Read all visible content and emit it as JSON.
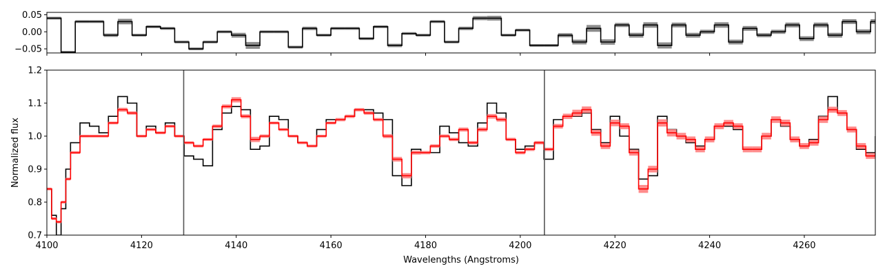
{
  "chart_data": [
    {
      "type": "line",
      "panel": "residuals",
      "xlim": [
        4100,
        4275
      ],
      "ylim": [
        -0.062,
        0.057
      ],
      "yticks": [
        -0.05,
        0.0,
        0.05
      ],
      "ytick_labels": [
        "−0.05",
        "0.00",
        "0.05"
      ],
      "series": [
        {
          "style": "steps",
          "color": "#000000",
          "error_color": "#808080",
          "x": [
            4100,
            4103,
            4106,
            4109,
            4112,
            4115,
            4118,
            4121,
            4124,
            4127,
            4130,
            4133,
            4136,
            4139,
            4142,
            4145,
            4148,
            4151,
            4154,
            4157,
            4160,
            4163,
            4166,
            4169,
            4172,
            4175,
            4178,
            4181,
            4184,
            4187,
            4190,
            4193,
            4196,
            4199,
            4202,
            4205,
            4208,
            4211,
            4214,
            4217,
            4220,
            4223,
            4226,
            4229,
            4232,
            4235,
            4238,
            4241,
            4244,
            4247,
            4250,
            4253,
            4256,
            4259,
            4262,
            4265,
            4268,
            4271,
            4274
          ],
          "y": [
            0.04,
            -0.06,
            0.03,
            0.03,
            -0.01,
            0.03,
            -0.01,
            0.015,
            0.01,
            -0.03,
            -0.05,
            -0.03,
            0.0,
            -0.01,
            -0.04,
            0.0,
            0.0,
            -0.045,
            0.01,
            -0.01,
            0.01,
            0.01,
            -0.02,
            0.015,
            -0.04,
            -0.005,
            -0.01,
            0.03,
            -0.03,
            0.01,
            0.04,
            0.04,
            -0.01,
            0.005,
            -0.04,
            -0.04,
            -0.01,
            -0.03,
            0.01,
            -0.03,
            0.02,
            -0.01,
            0.02,
            -0.04,
            0.02,
            -0.01,
            0.0,
            0.02,
            -0.03,
            0.01,
            -0.01,
            0.0,
            0.02,
            -0.02,
            0.02,
            -0.01,
            0.03,
            0.0,
            0.03
          ],
          "errors": [
            0.002,
            0.002,
            0.002,
            0.002,
            0.005,
            0.008,
            0.004,
            0.004,
            0.003,
            0.002,
            0.002,
            0.002,
            0.004,
            0.007,
            0.01,
            0.004,
            0.002,
            0.002,
            0.005,
            0.002,
            0.002,
            0.002,
            0.003,
            0.003,
            0.005,
            0.004,
            0.003,
            0.003,
            0.002,
            0.005,
            0.006,
            0.007,
            0.003,
            0.004,
            0.002,
            0.003,
            0.006,
            0.007,
            0.01,
            0.008,
            0.006,
            0.007,
            0.008,
            0.009,
            0.007,
            0.007,
            0.006,
            0.008,
            0.007,
            0.007,
            0.006,
            0.006,
            0.007,
            0.007,
            0.007,
            0.007,
            0.007,
            0.007,
            0.007
          ]
        }
      ]
    },
    {
      "type": "line",
      "panel": "spectrum",
      "xlabel": "Wavelengths (Angstroms)",
      "ylabel": "Normalized flux",
      "xlim": [
        4100,
        4275
      ],
      "ylim": [
        0.7,
        1.2
      ],
      "xticks": [
        4100,
        4120,
        4140,
        4160,
        4180,
        4200,
        4220,
        4240,
        4260
      ],
      "yticks": [
        0.7,
        0.8,
        0.9,
        1.0,
        1.1,
        1.2
      ],
      "ytick_labels": [
        "0.7",
        "0.8",
        "0.9",
        "1.0",
        "1.1",
        "1.2"
      ],
      "vlines": [
        4128.9,
        4205.1
      ],
      "series": [
        {
          "style": "steps",
          "color": "#000000",
          "x": [
            4100,
            4101,
            4102,
            4103,
            4104,
            4105,
            4107,
            4109,
            4111,
            4113,
            4115,
            4117,
            4119,
            4121,
            4123,
            4125,
            4127,
            4129,
            4131,
            4133,
            4135,
            4137,
            4139,
            4141,
            4143,
            4145,
            4147,
            4149,
            4151,
            4153,
            4155,
            4157,
            4159,
            4161,
            4163,
            4165,
            4167,
            4169,
            4171,
            4173,
            4175,
            4177,
            4179,
            4181,
            4183,
            4185,
            4187,
            4189,
            4191,
            4193,
            4195,
            4197,
            4199,
            4201,
            4203,
            4205,
            4207,
            4209,
            4211,
            4213,
            4215,
            4217,
            4219,
            4221,
            4223,
            4225,
            4227,
            4229,
            4231,
            4233,
            4235,
            4237,
            4239,
            4241,
            4243,
            4245,
            4247,
            4249,
            4251,
            4253,
            4255,
            4257,
            4259,
            4261,
            4263,
            4265,
            4267,
            4269,
            4271,
            4273,
            4275
          ],
          "y": [
            0.84,
            0.76,
            0.7,
            0.78,
            0.9,
            0.98,
            1.04,
            1.03,
            1.01,
            1.06,
            1.12,
            1.1,
            1.0,
            1.03,
            1.01,
            1.04,
            1.0,
            0.94,
            0.93,
            0.91,
            1.02,
            1.07,
            1.09,
            1.08,
            0.96,
            0.97,
            1.06,
            1.05,
            1.0,
            0.98,
            0.97,
            1.02,
            1.05,
            1.05,
            1.06,
            1.08,
            1.08,
            1.07,
            1.05,
            0.88,
            0.85,
            0.96,
            0.95,
            0.95,
            1.03,
            1.01,
            0.98,
            0.97,
            1.04,
            1.1,
            1.07,
            0.99,
            0.96,
            0.97,
            0.98,
            0.93,
            1.05,
            1.06,
            1.06,
            1.07,
            1.02,
            0.98,
            1.06,
            1.0,
            0.96,
            0.87,
            0.88,
            1.06,
            1.02,
            1.0,
            0.98,
            0.97,
            0.99,
            1.03,
            1.03,
            1.02,
            0.96,
            0.96,
            1.0,
            1.05,
            1.03,
            0.99,
            0.97,
            0.99,
            1.06,
            1.12,
            1.07,
            1.02,
            0.96,
            0.95,
            1.0
          ]
        },
        {
          "style": "steps",
          "color": "#ff0000",
          "error_color": "#ff7f7f",
          "x": [
            4100,
            4101,
            4102,
            4103,
            4104,
            4105,
            4107,
            4109,
            4111,
            4113,
            4115,
            4117,
            4119,
            4121,
            4123,
            4125,
            4127,
            4129,
            4131,
            4133,
            4135,
            4137,
            4139,
            4141,
            4143,
            4145,
            4147,
            4149,
            4151,
            4153,
            4155,
            4157,
            4159,
            4161,
            4163,
            4165,
            4167,
            4169,
            4171,
            4173,
            4175,
            4177,
            4179,
            4181,
            4183,
            4185,
            4187,
            4189,
            4191,
            4193,
            4195,
            4197,
            4199,
            4201,
            4203,
            4205,
            4207,
            4209,
            4211,
            4213,
            4215,
            4217,
            4219,
            4221,
            4223,
            4225,
            4227,
            4229,
            4231,
            4233,
            4235,
            4237,
            4239,
            4241,
            4243,
            4245,
            4247,
            4249,
            4251,
            4253,
            4255,
            4257,
            4259,
            4261,
            4263,
            4265,
            4267,
            4269,
            4271,
            4273,
            4275
          ],
          "y": [
            0.84,
            0.75,
            0.74,
            0.8,
            0.87,
            0.95,
            1.0,
            1.0,
            1.0,
            1.04,
            1.08,
            1.07,
            1.0,
            1.02,
            1.01,
            1.03,
            1.0,
            0.98,
            0.97,
            0.99,
            1.03,
            1.09,
            1.11,
            1.06,
            0.99,
            1.0,
            1.04,
            1.02,
            1.0,
            0.98,
            0.97,
            1.0,
            1.04,
            1.05,
            1.06,
            1.08,
            1.07,
            1.05,
            1.0,
            0.93,
            0.88,
            0.95,
            0.95,
            0.97,
            1.0,
            0.99,
            1.02,
            0.98,
            1.02,
            1.06,
            1.05,
            0.99,
            0.95,
            0.96,
            0.98,
            0.96,
            1.03,
            1.06,
            1.07,
            1.08,
            1.01,
            0.97,
            1.04,
            1.03,
            0.95,
            0.84,
            0.9,
            1.04,
            1.01,
            1.0,
            0.99,
            0.96,
            0.99,
            1.03,
            1.04,
            1.03,
            0.96,
            0.96,
            1.0,
            1.05,
            1.04,
            0.99,
            0.97,
            0.98,
            1.05,
            1.08,
            1.07,
            1.02,
            0.97,
            0.94,
            0.95
          ],
          "errors": [
            0.002,
            0.002,
            0.002,
            0.002,
            0.003,
            0.003,
            0.003,
            0.003,
            0.003,
            0.004,
            0.006,
            0.005,
            0.004,
            0.004,
            0.004,
            0.004,
            0.003,
            0.003,
            0.003,
            0.004,
            0.005,
            0.006,
            0.008,
            0.006,
            0.008,
            0.005,
            0.004,
            0.004,
            0.004,
            0.004,
            0.004,
            0.004,
            0.004,
            0.005,
            0.005,
            0.005,
            0.005,
            0.005,
            0.006,
            0.007,
            0.008,
            0.006,
            0.005,
            0.005,
            0.005,
            0.005,
            0.006,
            0.005,
            0.006,
            0.007,
            0.006,
            0.005,
            0.005,
            0.005,
            0.005,
            0.005,
            0.007,
            0.008,
            0.01,
            0.01,
            0.009,
            0.009,
            0.01,
            0.009,
            0.009,
            0.012,
            0.01,
            0.011,
            0.011,
            0.01,
            0.009,
            0.009,
            0.009,
            0.009,
            0.009,
            0.009,
            0.009,
            0.009,
            0.01,
            0.01,
            0.01,
            0.009,
            0.009,
            0.009,
            0.01,
            0.009,
            0.009,
            0.009,
            0.009,
            0.009,
            0.009
          ]
        }
      ]
    }
  ]
}
